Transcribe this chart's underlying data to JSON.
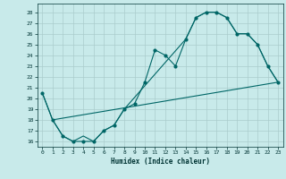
{
  "xlabel": "Humidex (Indice chaleur)",
  "bg_color": "#c8eaea",
  "grid_color": "#aacccc",
  "line_color": "#006666",
  "xlim": [
    -0.5,
    23.5
  ],
  "ylim": [
    15.5,
    28.8
  ],
  "yticks": [
    16,
    17,
    18,
    19,
    20,
    21,
    22,
    23,
    24,
    25,
    26,
    27,
    28
  ],
  "xticks": [
    0,
    1,
    2,
    3,
    4,
    5,
    6,
    7,
    8,
    9,
    10,
    11,
    12,
    13,
    14,
    15,
    16,
    17,
    18,
    19,
    20,
    21,
    22,
    23
  ],
  "line1_x": [
    0,
    1,
    2,
    3,
    4,
    5,
    6,
    7,
    8,
    9,
    10,
    11,
    12,
    13,
    14,
    15,
    16,
    17,
    18,
    19,
    20,
    21,
    22,
    23
  ],
  "line1_y": [
    20.5,
    18,
    16.5,
    16,
    16,
    16,
    17,
    17.5,
    19,
    19.5,
    21.5,
    24.5,
    24,
    23,
    25.5,
    27.5,
    28,
    28,
    27.5,
    26,
    26,
    25,
    23,
    21.5
  ],
  "line2_x": [
    0,
    1,
    2,
    3,
    4,
    5,
    6,
    7,
    8,
    14,
    15,
    16,
    17,
    18,
    19,
    20,
    21,
    22,
    23
  ],
  "line2_y": [
    20.5,
    18,
    16.5,
    16,
    16.5,
    16,
    17,
    17.5,
    19,
    25.5,
    27.5,
    28,
    28,
    27.5,
    26,
    26,
    25,
    23,
    21.5
  ],
  "line3_x": [
    1,
    23
  ],
  "line3_y": [
    18,
    21.5
  ]
}
